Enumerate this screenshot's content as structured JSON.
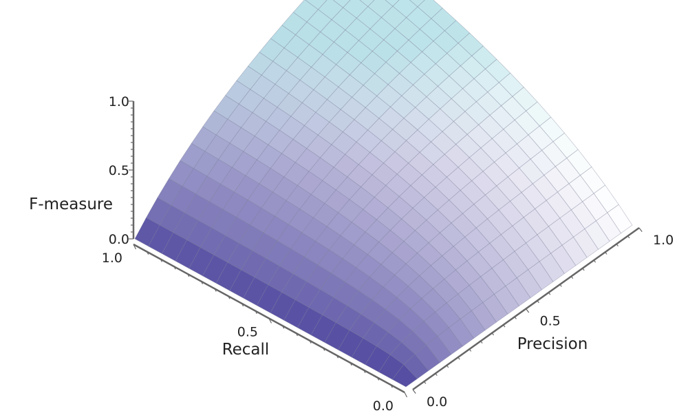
{
  "chart_data": {
    "type": "surface3d",
    "function": "F = 2 * Precision * Recall / (Precision + Recall)",
    "x_axis": {
      "label": "Precision",
      "range": [
        0,
        1
      ],
      "ticks": [
        {
          "value": 0.0,
          "label": "0.0"
        },
        {
          "value": 0.5,
          "label": "0.5"
        },
        {
          "value": 1.0,
          "label": "1.0"
        }
      ]
    },
    "y_axis": {
      "label": "Recall",
      "range": [
        0,
        1
      ],
      "ticks": [
        {
          "value": 0.0,
          "label": "0.0"
        },
        {
          "value": 0.5,
          "label": "0.5"
        },
        {
          "value": 1.0,
          "label": "1.0"
        }
      ]
    },
    "z_axis": {
      "label": "F-measure",
      "range": [
        0,
        1
      ],
      "ticks": [
        {
          "value": 0.0,
          "label": "0.0"
        },
        {
          "value": 0.5,
          "label": "0.5"
        },
        {
          "value": 1.0,
          "label": "1.0"
        }
      ]
    },
    "grid_divisions": 20,
    "colormap": {
      "low": "#453d99",
      "high": "#ffffff",
      "highlight": "#b2dfe6"
    },
    "samples": [
      {
        "precision": 0.0,
        "recall": 0.0,
        "f": 0.0
      },
      {
        "precision": 0.5,
        "recall": 0.5,
        "f": 0.5
      },
      {
        "precision": 1.0,
        "recall": 1.0,
        "f": 1.0
      },
      {
        "precision": 1.0,
        "recall": 0.0,
        "f": 0.0
      },
      {
        "precision": 0.0,
        "recall": 1.0,
        "f": 0.0
      },
      {
        "precision": 1.0,
        "recall": 0.5,
        "f": 0.667
      },
      {
        "precision": 0.5,
        "recall": 1.0,
        "f": 0.667
      }
    ]
  }
}
